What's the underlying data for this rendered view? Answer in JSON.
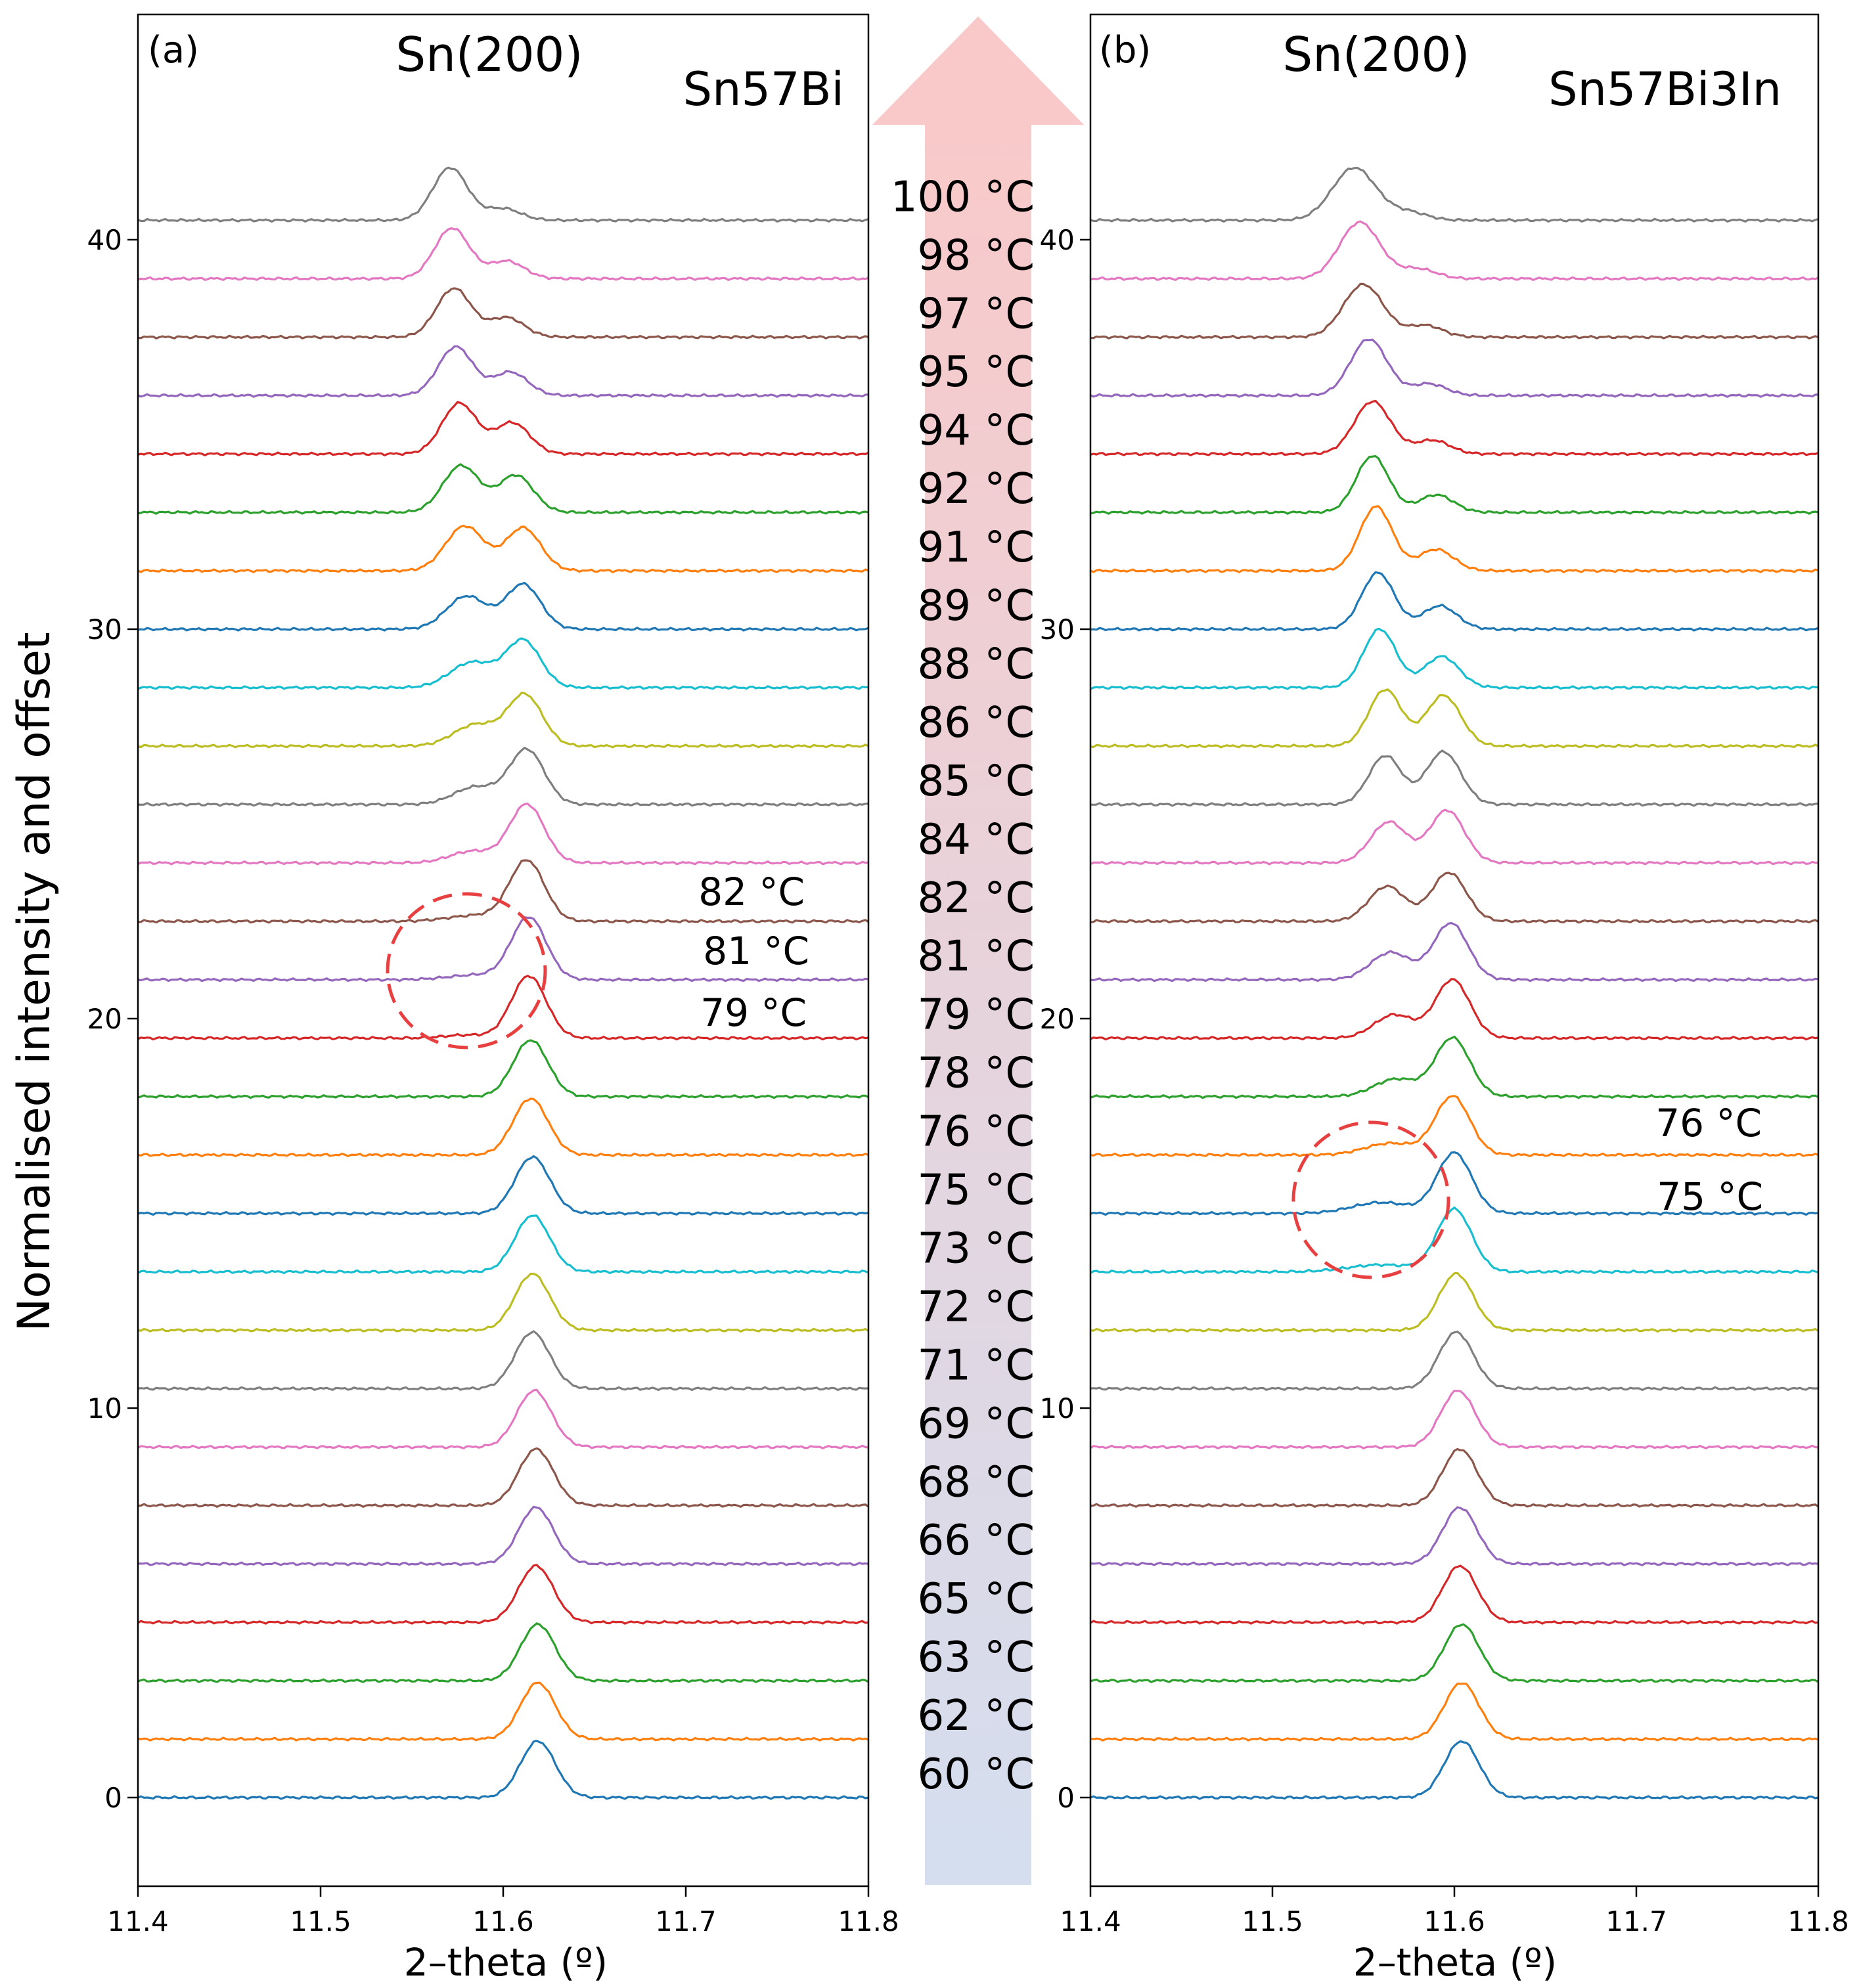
{
  "figure": {
    "ylabel": "Normalised intensity and offset",
    "arrow_colors": {
      "top": "#f9c9c9",
      "bottom": "#d4deef"
    },
    "temperatures": [
      "100 °C",
      "98 °C",
      "97 °C",
      "95 °C",
      "94 °C",
      "92 °C",
      "91 °C",
      "89 °C",
      "88 °C",
      "86 °C",
      "85 °C",
      "84 °C",
      "82 °C",
      "81 °C",
      "79 °C",
      "78 °C",
      "76 °C",
      "75 °C",
      "73 °C",
      "72 °C",
      "71 °C",
      "69 °C",
      "68 °C",
      "66 °C",
      "65 °C",
      "63 °C",
      "62 °C",
      "60 °C"
    ]
  },
  "colors": [
    "#1f77b4",
    "#ff7f0e",
    "#2ca02c",
    "#d62728",
    "#9467bd",
    "#8c564b",
    "#e377c2",
    "#7f7f7f",
    "#bcbd22",
    "#17becf"
  ],
  "chart_data": [
    {
      "type": "line",
      "panel_label": "(a)",
      "peak_label": "Sn(200)",
      "sample": "Sn57Bi",
      "xlabel": "2–theta (º)",
      "ylabel": "Normalised intensity and offset",
      "xlim": [
        11.4,
        11.8
      ],
      "ylim": [
        -2,
        45.5
      ],
      "xticks": [
        "11.4",
        "11.5",
        "11.6",
        "11.7",
        "11.8"
      ],
      "yticks": [
        "0",
        "10",
        "20",
        "30",
        "40"
      ],
      "offset_step": 1.5,
      "series_count": 28,
      "series_temperatures_bottom_to_top": [
        60,
        62,
        63,
        65,
        66,
        68,
        69,
        71,
        72,
        73,
        75,
        76,
        78,
        79,
        81,
        82,
        84,
        85,
        86,
        88,
        89,
        91,
        92,
        94,
        95,
        97,
        98,
        100
      ],
      "peaks_per_series": [
        [
          [
            11.619,
            1.45,
            0.0095
          ]
        ],
        [
          [
            11.619,
            1.45,
            0.0095
          ]
        ],
        [
          [
            11.619,
            1.45,
            0.0095
          ]
        ],
        [
          [
            11.618,
            1.45,
            0.0095
          ]
        ],
        [
          [
            11.618,
            1.45,
            0.0095
          ]
        ],
        [
          [
            11.618,
            1.45,
            0.0095
          ]
        ],
        [
          [
            11.617,
            1.45,
            0.0095
          ]
        ],
        [
          [
            11.616,
            1.45,
            0.0095
          ]
        ],
        [
          [
            11.616,
            1.45,
            0.0095
          ]
        ],
        [
          [
            11.616,
            1.45,
            0.0095
          ]
        ],
        [
          [
            11.616,
            1.45,
            0.0095
          ]
        ],
        [
          [
            11.615,
            1.45,
            0.0095
          ]
        ],
        [
          [
            11.615,
            1.45,
            0.0095
          ]
        ],
        [
          [
            11.614,
            1.6,
            0.0095
          ],
          [
            11.58,
            0.08,
            0.012
          ]
        ],
        [
          [
            11.614,
            1.6,
            0.0095
          ],
          [
            11.585,
            0.12,
            0.015
          ]
        ],
        [
          [
            11.613,
            1.55,
            0.0095
          ],
          [
            11.585,
            0.15,
            0.015
          ]
        ],
        [
          [
            11.613,
            1.5,
            0.0095
          ],
          [
            11.583,
            0.3,
            0.012
          ]
        ],
        [
          [
            11.613,
            1.4,
            0.0095
          ],
          [
            11.585,
            0.45,
            0.012
          ]
        ],
        [
          [
            11.612,
            1.3,
            0.0095
          ],
          [
            11.585,
            0.55,
            0.012
          ]
        ],
        [
          [
            11.611,
            1.2,
            0.0095
          ],
          [
            11.583,
            0.65,
            0.012
          ]
        ],
        [
          [
            11.611,
            1.15,
            0.0095
          ],
          [
            11.58,
            0.85,
            0.011
          ]
        ],
        [
          [
            11.611,
            1.1,
            0.0095
          ],
          [
            11.579,
            1.15,
            0.0105
          ]
        ],
        [
          [
            11.607,
            0.95,
            0.0095
          ],
          [
            11.577,
            1.2,
            0.01
          ]
        ],
        [
          [
            11.605,
            0.8,
            0.0095
          ],
          [
            11.576,
            1.3,
            0.0095
          ]
        ],
        [
          [
            11.604,
            0.6,
            0.0095
          ],
          [
            11.574,
            1.25,
            0.0095
          ]
        ],
        [
          [
            11.602,
            0.5,
            0.0095
          ],
          [
            11.573,
            1.25,
            0.0095
          ]
        ],
        [
          [
            11.602,
            0.45,
            0.0095
          ],
          [
            11.572,
            1.3,
            0.0095
          ]
        ],
        [
          [
            11.6,
            0.3,
            0.0095
          ],
          [
            11.571,
            1.35,
            0.0095
          ]
        ]
      ],
      "annotations": [
        "82 °C",
        "81 °C",
        "79 °C"
      ]
    },
    {
      "type": "line",
      "panel_label": "(b)",
      "peak_label": "Sn(200)",
      "sample": "Sn57Bi3In",
      "xlabel": "2–theta (º)",
      "xlim": [
        11.4,
        11.8
      ],
      "ylim": [
        -2,
        45.5
      ],
      "xticks": [
        "11.4",
        "11.5",
        "11.6",
        "11.7",
        "11.8"
      ],
      "yticks": [
        "0",
        "10",
        "20",
        "30",
        "40"
      ],
      "offset_step": 1.5,
      "series_count": 28,
      "series_temperatures_bottom_to_top": [
        60,
        62,
        63,
        65,
        66,
        68,
        69,
        71,
        72,
        73,
        75,
        76,
        78,
        79,
        81,
        82,
        84,
        85,
        86,
        88,
        89,
        91,
        92,
        94,
        95,
        97,
        98,
        100
      ],
      "peaks_per_series": [
        [
          [
            11.604,
            1.45,
            0.0095
          ]
        ],
        [
          [
            11.604,
            1.45,
            0.0095
          ]
        ],
        [
          [
            11.604,
            1.45,
            0.0095
          ]
        ],
        [
          [
            11.603,
            1.45,
            0.0095
          ]
        ],
        [
          [
            11.603,
            1.45,
            0.0095
          ]
        ],
        [
          [
            11.603,
            1.45,
            0.0095
          ]
        ],
        [
          [
            11.602,
            1.45,
            0.0095
          ]
        ],
        [
          [
            11.601,
            1.45,
            0.0095
          ]
        ],
        [
          [
            11.601,
            1.45,
            0.0095
          ]
        ],
        [
          [
            11.6,
            1.6,
            0.0095
          ],
          [
            11.56,
            0.18,
            0.018
          ]
        ],
        [
          [
            11.6,
            1.55,
            0.0095
          ],
          [
            11.56,
            0.28,
            0.016
          ]
        ],
        [
          [
            11.599,
            1.5,
            0.0095
          ],
          [
            11.565,
            0.3,
            0.014
          ]
        ],
        [
          [
            11.599,
            1.5,
            0.0095
          ],
          [
            11.568,
            0.45,
            0.012
          ]
        ],
        [
          [
            11.599,
            1.5,
            0.0095
          ],
          [
            11.567,
            0.6,
            0.011
          ]
        ],
        [
          [
            11.598,
            1.45,
            0.0095
          ],
          [
            11.565,
            0.7,
            0.011
          ]
        ],
        [
          [
            11.597,
            1.25,
            0.0095
          ],
          [
            11.563,
            0.9,
            0.01
          ]
        ],
        [
          [
            11.596,
            1.35,
            0.0095
          ],
          [
            11.564,
            1.05,
            0.01
          ]
        ],
        [
          [
            11.594,
            1.35,
            0.0095
          ],
          [
            11.562,
            1.25,
            0.009
          ]
        ],
        [
          [
            11.594,
            1.3,
            0.0095
          ],
          [
            11.562,
            1.45,
            0.009
          ]
        ],
        [
          [
            11.593,
            0.8,
            0.0095
          ],
          [
            11.559,
            1.5,
            0.009
          ]
        ],
        [
          [
            11.592,
            0.6,
            0.0095
          ],
          [
            11.558,
            1.45,
            0.009
          ]
        ],
        [
          [
            11.59,
            0.55,
            0.0095
          ],
          [
            11.557,
            1.65,
            0.009
          ]
        ],
        [
          [
            11.59,
            0.45,
            0.0095
          ],
          [
            11.555,
            1.45,
            0.009
          ]
        ],
        [
          [
            11.588,
            0.35,
            0.0095
          ],
          [
            11.555,
            1.35,
            0.01
          ]
        ],
        [
          [
            11.586,
            0.3,
            0.0095
          ],
          [
            11.553,
            1.45,
            0.01
          ]
        ],
        [
          [
            11.584,
            0.3,
            0.0095
          ],
          [
            11.55,
            1.35,
            0.011
          ]
        ],
        [
          [
            11.58,
            0.25,
            0.01
          ],
          [
            11.548,
            1.45,
            0.011
          ]
        ],
        [
          [
            11.575,
            0.2,
            0.01
          ],
          [
            11.545,
            1.35,
            0.012
          ]
        ]
      ],
      "annotations": [
        "76 °C",
        "75 °C"
      ]
    }
  ]
}
